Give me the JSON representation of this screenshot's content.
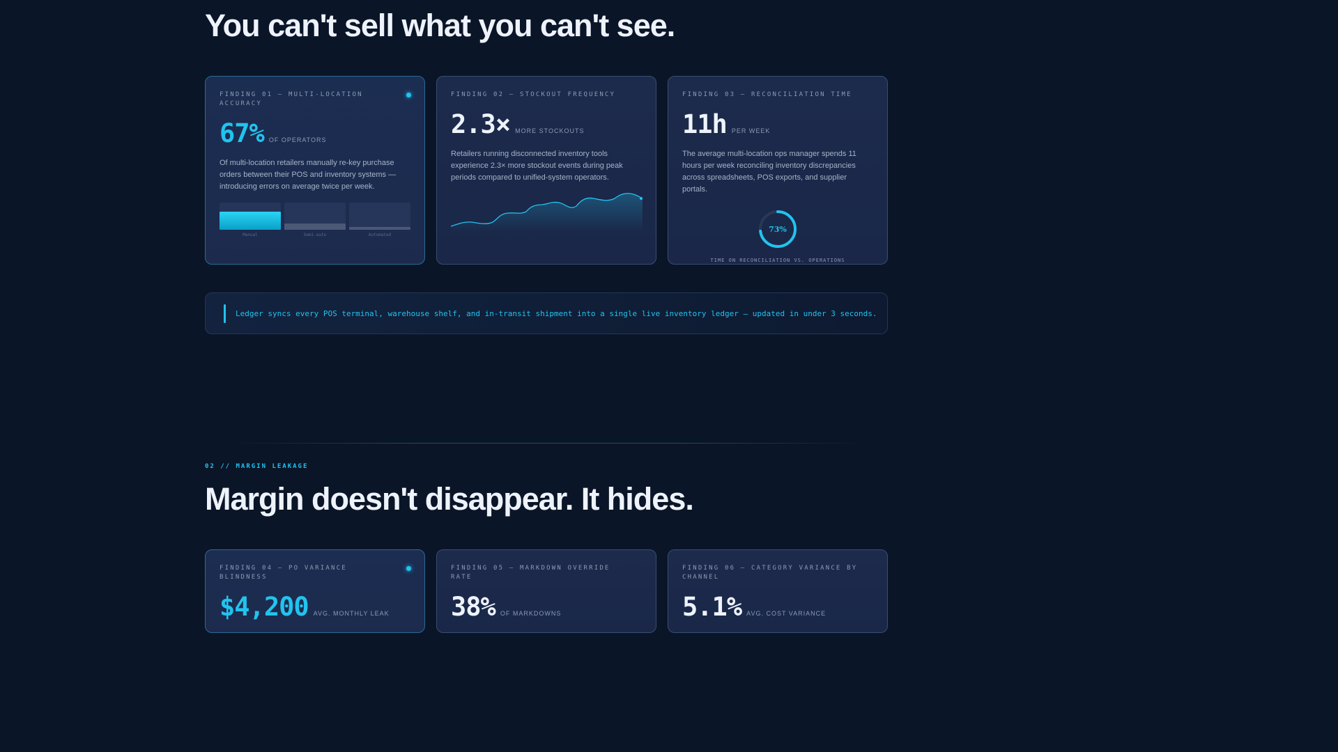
{
  "section1": {
    "headline": "You can't sell what you can't see.",
    "cards": [
      {
        "label": "FINDING 01 — MULTI-LOCATION ACCURACY",
        "stat": "67%",
        "unit": "OF OPERATORS",
        "desc": "Of multi-location retailers manually re-key purchase orders between their POS and inventory systems — introducing errors on average twice per week.",
        "bars": [
          {
            "label": "Manual",
            "value": 0.67
          },
          {
            "label": "Semi-auto",
            "value": 0.22
          },
          {
            "label": "Automated",
            "value": 0.11
          }
        ]
      },
      {
        "label": "FINDING 02 — STOCKOUT FREQUENCY",
        "stat": "2.3×",
        "unit": "MORE STOCKOUTS",
        "desc": "Retailers running disconnected inventory tools experience 2.3× more stockout events during peak periods compared to unified-system operators."
      },
      {
        "label": "FINDING 03 — RECONCILIATION TIME",
        "stat": "11h",
        "unit": "PER WEEK",
        "desc": "The average multi-location ops manager spends 11 hours per week reconciling inventory discrepancies across spreadsheets, POS exports, and supplier portals.",
        "donut_value": "73%",
        "donut_fraction": 0.73,
        "donut_caption": "TIME ON RECONCILIATION VS. OPERATIONS"
      }
    ],
    "callout": "Ledger syncs every POS terminal, warehouse shelf, and in-transit shipment into a single live inventory ledger — updated in under 3 seconds."
  },
  "section2": {
    "label": "02 // MARGIN LEAKAGE",
    "headline": "Margin doesn't disappear. It hides.",
    "cards": [
      {
        "label": "FINDING 04 — PO VARIANCE BLINDNESS",
        "stat": "$4,200",
        "unit": "AVG. MONTHLY LEAK"
      },
      {
        "label": "FINDING 05 — MARKDOWN OVERRIDE RATE",
        "stat": "38%",
        "unit": "OF MARKDOWNS"
      },
      {
        "label": "FINDING 06 — CATEGORY VARIANCE BY CHANNEL",
        "stat": "5.1%",
        "unit": "AVG. COST VARIANCE"
      }
    ]
  },
  "colors": {
    "accent": "#22c3ee",
    "background": "#0b1528",
    "card": "#1c2a4c"
  }
}
